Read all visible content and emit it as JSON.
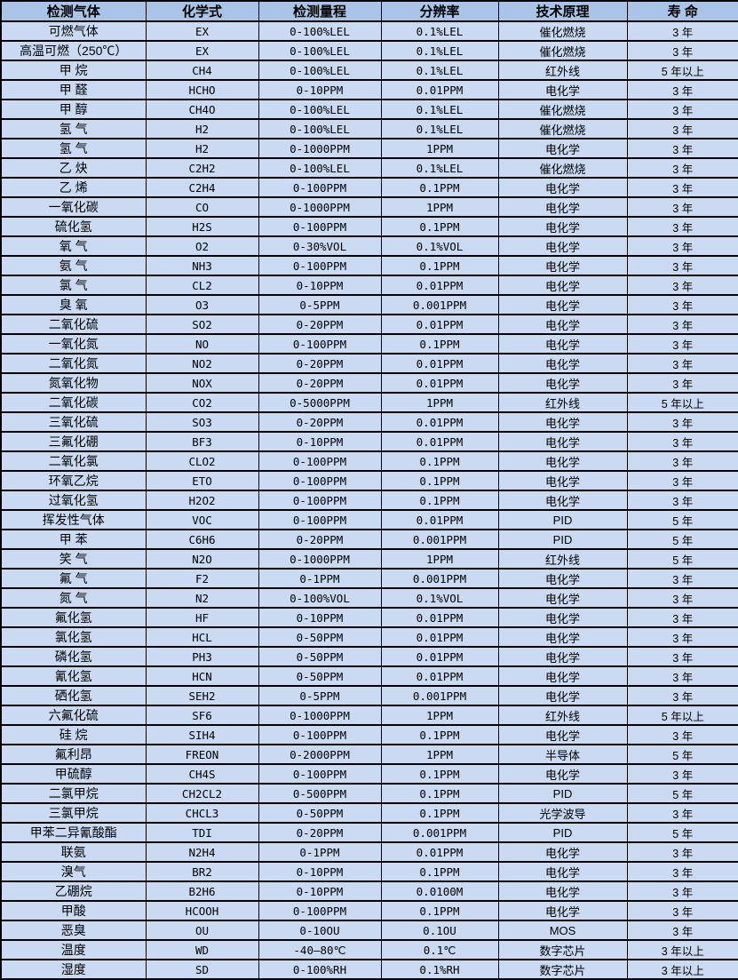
{
  "colors": {
    "header_bg": "#a9c4e6",
    "row_bg": "#c9daf2",
    "border": "#000000",
    "text": "#000000"
  },
  "table": {
    "headers": [
      "检测气体",
      "化学式",
      "检测量程",
      "分辨率",
      "技术原理",
      "寿 命"
    ],
    "rows": [
      [
        "可燃气体",
        "EX",
        "0-100%LEL",
        "0.1%LEL",
        "催化燃烧",
        "3 年"
      ],
      [
        "高温可燃（250℃）",
        "EX",
        "0-100%LEL",
        "0.1%LEL",
        "催化燃烧",
        "3 年"
      ],
      [
        "甲 烷",
        "CH4",
        "0-100%LEL",
        "0.1%LEL",
        "红外线",
        "5 年以上"
      ],
      [
        "甲 醛",
        "HCHO",
        "0-10PPM",
        "0.01PPM",
        "电化学",
        "3 年"
      ],
      [
        "甲 醇",
        "CH4O",
        "0-100%LEL",
        "0.1%LEL",
        "催化燃烧",
        "3 年"
      ],
      [
        "氢 气",
        "H2",
        "0-100%LEL",
        "0.1%LEL",
        "催化燃烧",
        "3 年"
      ],
      [
        "氢 气",
        "H2",
        "0-1000PPM",
        "1PPM",
        "电化学",
        "3 年"
      ],
      [
        "乙 炔",
        "C2H2",
        "0-100%LEL",
        "0.1%LEL",
        "催化燃烧",
        "3 年"
      ],
      [
        "乙 烯",
        "C2H4",
        "0-100PPM",
        "0.1PPM",
        "电化学",
        "3 年"
      ],
      [
        "一氧化碳",
        "CO",
        "0-1000PPM",
        "1PPM",
        "电化学",
        "3 年"
      ],
      [
        "硫化氢",
        "H2S",
        "0-100PPM",
        "0.1PPM",
        "电化学",
        "3 年"
      ],
      [
        "氧 气",
        "O2",
        "0-30%VOL",
        "0.1%VOL",
        "电化学",
        "3 年"
      ],
      [
        "氨 气",
        "NH3",
        "0-100PPM",
        "0.1PPM",
        "电化学",
        "3 年"
      ],
      [
        "氯 气",
        "CL2",
        "0-10PPM",
        "0.01PPM",
        "电化学",
        "3 年"
      ],
      [
        "臭 氧",
        "O3",
        "0-5PPM",
        "0.001PPM",
        "电化学",
        "3 年"
      ],
      [
        "二氧化硫",
        "SO2",
        "0-20PPM",
        "0.01PPM",
        "电化学",
        "3 年"
      ],
      [
        "一氧化氮",
        "NO",
        "0-100PPM",
        "0.1PPM",
        "电化学",
        "3 年"
      ],
      [
        "二氧化氮",
        "NO2",
        "0-20PPM",
        "0.01PPM",
        "电化学",
        "3 年"
      ],
      [
        "氮氧化物",
        "NOX",
        "0-20PPM",
        "0.01PPM",
        "电化学",
        "3 年"
      ],
      [
        "二氧化碳",
        "CO2",
        "0-5000PPM",
        "1PPM",
        "红外线",
        "5 年以上"
      ],
      [
        "三氧化硫",
        "SO3",
        "0-20PPM",
        "0.01PPM",
        "电化学",
        "3 年"
      ],
      [
        "三氟化硼",
        "BF3",
        "0-10PPM",
        "0.01PPM",
        "电化学",
        "3 年"
      ],
      [
        "二氧化氯",
        "CLO2",
        "0-100PPM",
        "0.1PPM",
        "电化学",
        "3 年"
      ],
      [
        "环氧乙烷",
        "ETO",
        "0-100PPM",
        "0.1PPM",
        "电化学",
        "3 年"
      ],
      [
        "过氧化氢",
        "H2O2",
        "0-100PPM",
        "0.1PPM",
        "电化学",
        "3 年"
      ],
      [
        "挥发性气体",
        "VOC",
        "0-100PPM",
        "0.01PPM",
        "PID",
        "5 年"
      ],
      [
        "甲 苯",
        "C6H6",
        "0-20PPM",
        "0.001PPM",
        "PID",
        "5 年"
      ],
      [
        "笑 气",
        "N2O",
        "0-1000PPM",
        "1PPM",
        "红外线",
        "5 年"
      ],
      [
        "氟 气",
        "F2",
        "0-1PPM",
        "0.001PPM",
        "电化学",
        "3 年"
      ],
      [
        "氮 气",
        "N2",
        "0-100%VOL",
        "0.1%VOL",
        "电化学",
        "3 年"
      ],
      [
        "氟化氢",
        "HF",
        "0-10PPM",
        "0.01PPM",
        "电化学",
        "3 年"
      ],
      [
        "氯化氢",
        "HCL",
        "0-50PPM",
        "0.01PPM",
        "电化学",
        "3 年"
      ],
      [
        "磷化氢",
        "PH3",
        "0-50PPM",
        "0.01PPM",
        "电化学",
        "3 年"
      ],
      [
        "氰化氢",
        "HCN",
        "0-50PPM",
        "0.01PPM",
        "电化学",
        "3 年"
      ],
      [
        "硒化氢",
        "SEH2",
        "0-5PPM",
        "0.001PPM",
        "电化学",
        "3 年"
      ],
      [
        "六氟化硫",
        "SF6",
        "0-1000PPM",
        "1PPM",
        "红外线",
        "5 年以上"
      ],
      [
        "硅 烷",
        "SIH4",
        "0-100PPM",
        "0.1PPM",
        "电化学",
        "3 年"
      ],
      [
        "氟利昂",
        "FREON",
        "0-2000PPM",
        "1PPM",
        "半导体",
        "5 年"
      ],
      [
        "甲硫醇",
        "CH4S",
        "0-100PPM",
        "0.1PPM",
        "电化学",
        "3 年"
      ],
      [
        "二氯甲烷",
        "CH2CL2",
        "0-500PPM",
        "0.1PPM",
        "PID",
        "5 年"
      ],
      [
        "三氯甲烷",
        "CHCL3",
        "0-50PPM",
        "0.1PPM",
        "光学波导",
        "3 年"
      ],
      [
        "甲苯二异氰酸酯",
        "TDI",
        "0-20PPM",
        "0.001PPM",
        "PID",
        "5 年"
      ],
      [
        "联氨",
        "N2H4",
        "0-1PPM",
        "0.01PPM",
        "电化学",
        "3 年"
      ],
      [
        "溴气",
        "BR2",
        "0-10PPM",
        "0.1PPM",
        "电化学",
        "3 年"
      ],
      [
        "乙硼烷",
        "B2H6",
        "0-10PPM",
        "0.0100M",
        "电化学",
        "3 年"
      ],
      [
        "甲酸",
        "HCOOH",
        "0-100PPM",
        "0.1PPM",
        "电化学",
        "3 年"
      ],
      [
        "恶臭",
        "OU",
        "0-10OU",
        "0.1OU",
        "MOS",
        "3 年"
      ],
      [
        "温度",
        "WD",
        "-40—80℃",
        "0.1℃",
        "数字芯片",
        "3 年以上"
      ],
      [
        "湿度",
        "SD",
        "0-100%RH",
        "0.1%RH",
        "数字芯片",
        "3 年以上"
      ]
    ]
  }
}
